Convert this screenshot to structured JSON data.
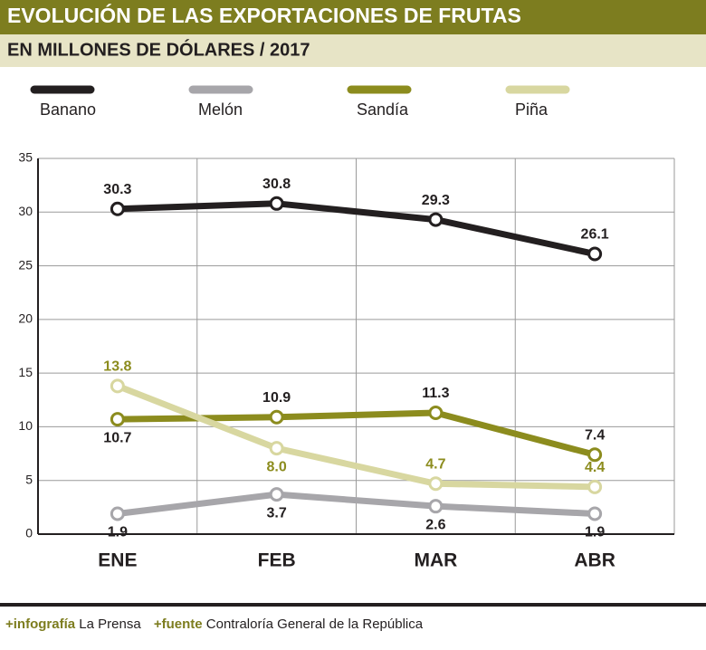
{
  "chart_data": {
    "type": "line",
    "title": "EVOLUCIÓN DE LAS EXPORTACIONES DE FRUTAS",
    "subtitle": "EN MILLONES DE DÓLARES / 2017",
    "categories": [
      "ENE",
      "FEB",
      "MAR",
      "ABR"
    ],
    "series": [
      {
        "name": "Banano",
        "color": "#231f20",
        "values": [
          30.3,
          30.8,
          29.3,
          26.1
        ]
      },
      {
        "name": "Melón",
        "color": "#a7a6aa",
        "values": [
          1.9,
          3.7,
          2.6,
          1.9
        ]
      },
      {
        "name": "Sandía",
        "color": "#8c8c1e",
        "values": [
          10.7,
          10.9,
          11.3,
          7.4
        ]
      },
      {
        "name": "Piña",
        "color": "#d8d7a0",
        "values": [
          13.8,
          8.0,
          4.7,
          4.4
        ],
        "value_labels": [
          "13.8",
          "8.0",
          "4.7",
          "4.4"
        ]
      }
    ],
    "ylim": [
      0,
      35
    ],
    "yticks": [
      0,
      5,
      10,
      15,
      20,
      25,
      30,
      35
    ],
    "grid": true
  },
  "footer": {
    "credit_label": "+infografía",
    "credit": "La Prensa",
    "source_label": "+fuente",
    "source": "Contraloría General de la República"
  }
}
